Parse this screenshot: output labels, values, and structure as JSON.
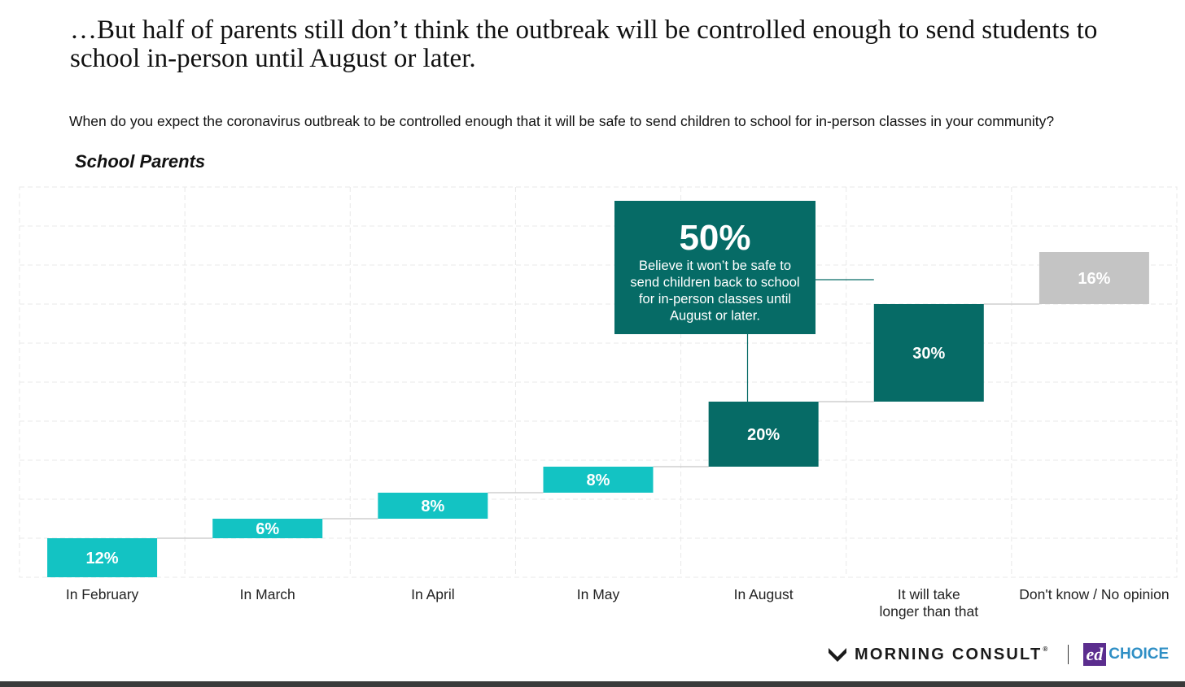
{
  "headline": "…But half of parents still don’t think the outbreak will be controlled enough to send students to school in-person until August or later.",
  "question": "When do you expect the coronavirus outbreak to be controlled enough that it will be safe to send children to school for in-person classes in your community?",
  "subtitle": "School Parents",
  "colors": {
    "light_teal": "#13c3c3",
    "dark_teal": "#066b66",
    "gray": "#c4c4c4",
    "connector": "#cfcfcf",
    "grid": "#e8e8e8"
  },
  "chart_data": {
    "type": "bar",
    "subtype": "waterfall",
    "categories": [
      "In February",
      "In March",
      "In April",
      "In May",
      "In August",
      "It will take longer than that",
      "Don't know / No opinion"
    ],
    "values": [
      12,
      6,
      8,
      8,
      20,
      30,
      16
    ],
    "value_labels": [
      "12%",
      "6%",
      "8%",
      "8%",
      "20%",
      "30%",
      "16%"
    ],
    "bar_colors": [
      "light_teal",
      "light_teal",
      "light_teal",
      "light_teal",
      "dark_teal",
      "dark_teal",
      "gray"
    ],
    "ylim": [
      0,
      120
    ],
    "grid": true,
    "annotation": {
      "value": "50%",
      "text": "Believe it won’t be safe to send children back to school for in-person classes until August or later."
    }
  },
  "logos": {
    "morning_consult": "MORNING CONSULT",
    "edchoice_ed": "ed",
    "edchoice_choice": "CHOICE"
  }
}
